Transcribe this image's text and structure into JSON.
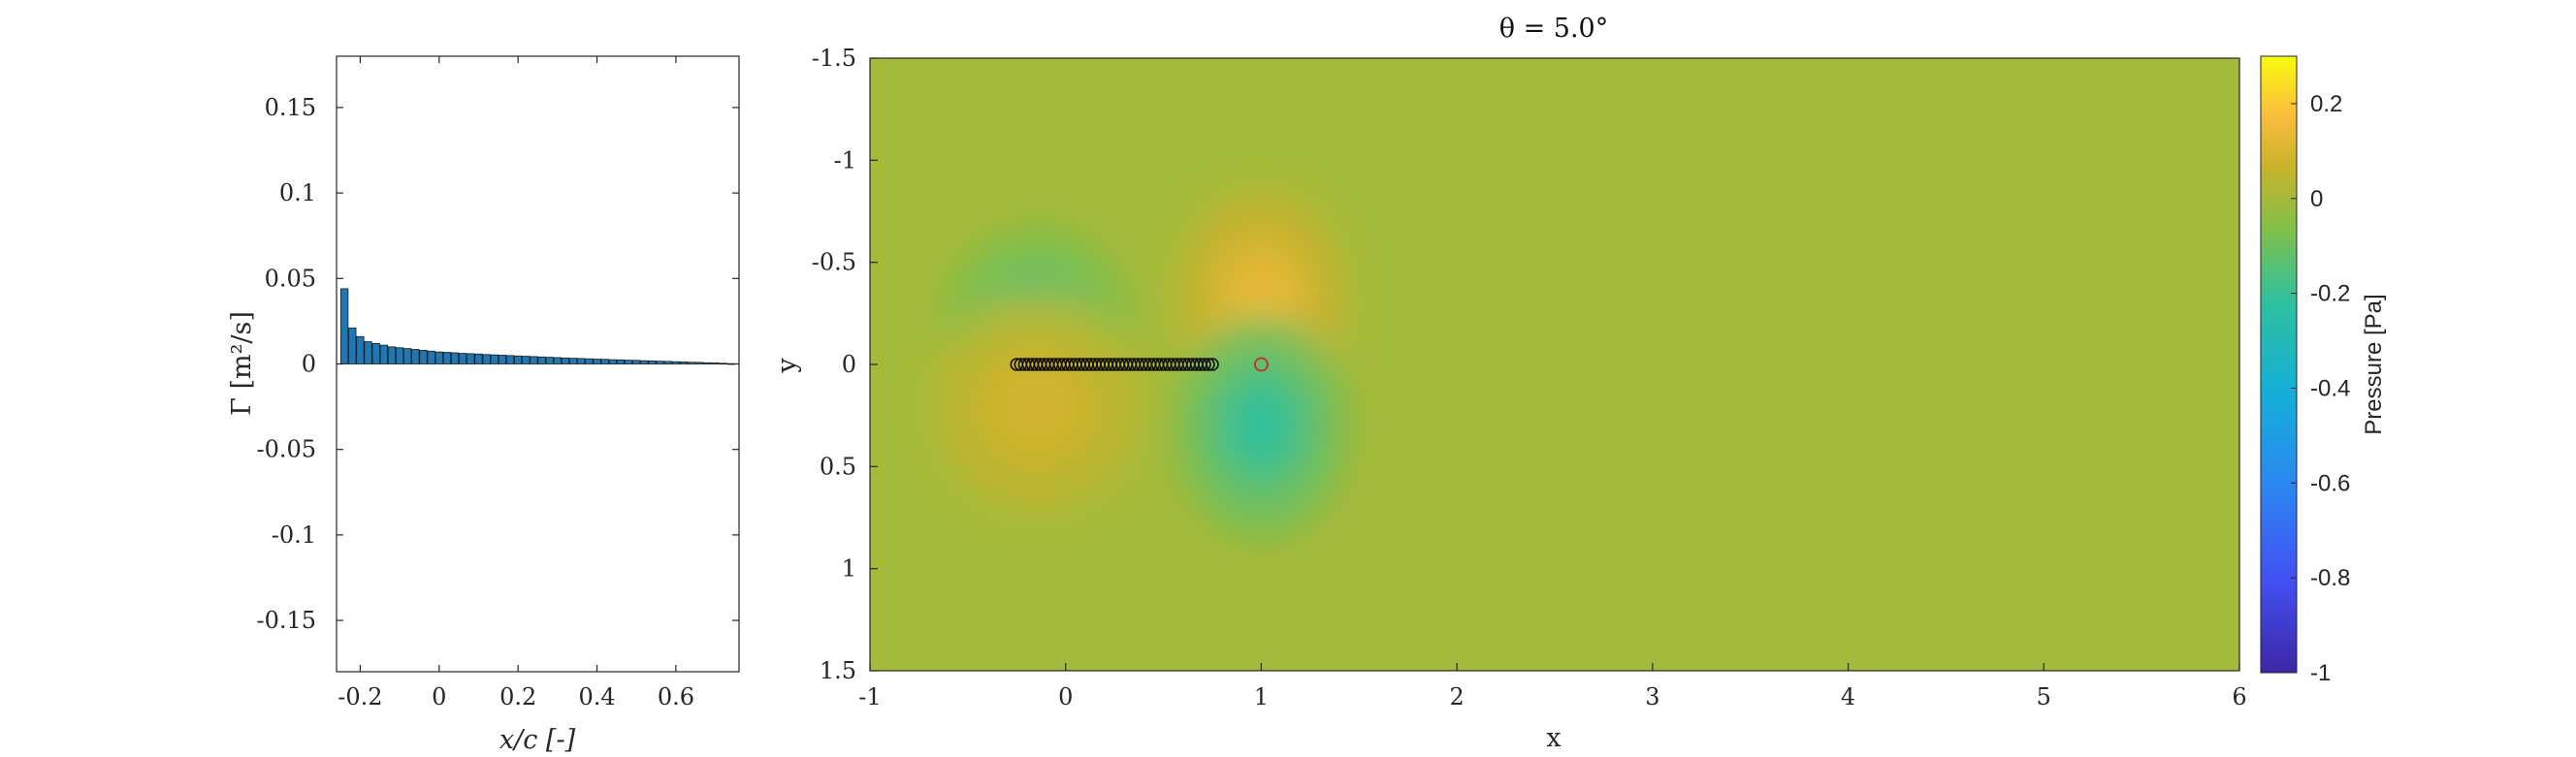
{
  "chart_data": [
    {
      "type": "bar",
      "xlabel": "x/c [-]",
      "ylabel": "Γ [m²/s]",
      "xlim": [
        -0.26,
        0.76
      ],
      "ylim": [
        -0.18,
        0.18
      ],
      "xticks": [
        "-0.2",
        "0",
        "0.2",
        "0.4",
        "0.6"
      ],
      "xtick_values": [
        -0.2,
        0,
        0.2,
        0.4,
        0.6
      ],
      "yticks": [
        "-0.15",
        "-0.1",
        "-0.05",
        "0",
        "0.05",
        "0.1",
        "0.15"
      ],
      "ytick_values": [
        -0.15,
        -0.1,
        -0.05,
        0,
        0.05,
        0.1,
        0.15
      ],
      "bar_color": "#1f77b4",
      "x": [
        -0.24,
        -0.22,
        -0.2,
        -0.18,
        -0.16,
        -0.14,
        -0.12,
        -0.1,
        -0.08,
        -0.06,
        -0.04,
        -0.02,
        0,
        0.02,
        0.04,
        0.06,
        0.08,
        0.1,
        0.12,
        0.14,
        0.16,
        0.18,
        0.2,
        0.22,
        0.24,
        0.26,
        0.28,
        0.3,
        0.32,
        0.34,
        0.36,
        0.38,
        0.4,
        0.42,
        0.44,
        0.46,
        0.48,
        0.5,
        0.52,
        0.54,
        0.56,
        0.58,
        0.6,
        0.62,
        0.64,
        0.66,
        0.68,
        0.7,
        0.72,
        0.74
      ],
      "values": [
        0.044,
        0.021,
        0.016,
        0.013,
        0.012,
        0.011,
        0.01,
        0.0095,
        0.009,
        0.0085,
        0.008,
        0.0075,
        0.007,
        0.0068,
        0.0065,
        0.0062,
        0.006,
        0.0058,
        0.0055,
        0.0053,
        0.0051,
        0.0049,
        0.0047,
        0.0045,
        0.0043,
        0.0041,
        0.0039,
        0.0037,
        0.0035,
        0.0033,
        0.0032,
        0.003,
        0.0028,
        0.0027,
        0.0025,
        0.0024,
        0.0022,
        0.0021,
        0.0019,
        0.0018,
        0.0016,
        0.0015,
        0.0013,
        0.0012,
        0.001,
        0.0009,
        0.0007,
        0.0006,
        0.0004,
        0.0002
      ]
    },
    {
      "type": "heatmap",
      "title": "θ = 5.0°",
      "xlabel": "x",
      "ylabel": "y",
      "xlim": [
        -1,
        6
      ],
      "ylim": [
        -1.5,
        1.5
      ],
      "y_reversed": true,
      "xticks": [
        "-1",
        "0",
        "1",
        "2",
        "3",
        "4",
        "5",
        "6"
      ],
      "xtick_values": [
        -1,
        0,
        1,
        2,
        3,
        4,
        5,
        6
      ],
      "yticks": [
        "-1.5",
        "-1",
        "-0.5",
        "0",
        "0.5",
        "1",
        "1.5"
      ],
      "ytick_values": [
        -1.5,
        -1,
        -0.5,
        0,
        0.5,
        1,
        1.5
      ],
      "colormap": "parula",
      "background_value": 0.0,
      "features": [
        {
          "x": -0.15,
          "y": -0.2,
          "value": -0.16,
          "rx": 0.35,
          "ry": 0.35
        },
        {
          "x": -0.15,
          "y": 0.2,
          "value": 0.09,
          "rx": 0.4,
          "ry": 0.4
        },
        {
          "x": 1.0,
          "y": -0.3,
          "value": 0.14,
          "rx": 0.32,
          "ry": 0.4
        },
        {
          "x": 1.0,
          "y": 0.3,
          "value": -0.22,
          "rx": 0.32,
          "ry": 0.4
        }
      ],
      "panels_x": [
        -0.25,
        -0.23,
        -0.21,
        -0.19,
        -0.17,
        -0.15,
        -0.13,
        -0.11,
        -0.09,
        -0.07,
        -0.05,
        -0.03,
        -0.01,
        0.01,
        0.03,
        0.05,
        0.07,
        0.09,
        0.11,
        0.13,
        0.15,
        0.17,
        0.19,
        0.21,
        0.23,
        0.25,
        0.27,
        0.29,
        0.31,
        0.33,
        0.35,
        0.37,
        0.39,
        0.41,
        0.43,
        0.45,
        0.47,
        0.49,
        0.51,
        0.53,
        0.55,
        0.57,
        0.59,
        0.61,
        0.63,
        0.65,
        0.67,
        0.69,
        0.71,
        0.73,
        0.75
      ],
      "panels_y": 0,
      "probe_point": {
        "x": 1.0,
        "y": 0.0
      },
      "colorbar": {
        "label": "Pressure [Pa]",
        "limits": [
          -1,
          0.3
        ],
        "ticks": [
          "0.2",
          "0",
          "-0.2",
          "-0.4",
          "-0.6",
          "-0.8",
          "-1"
        ],
        "tick_values": [
          0.2,
          0,
          -0.2,
          -0.4,
          -0.6,
          -0.8,
          -1
        ]
      }
    }
  ]
}
